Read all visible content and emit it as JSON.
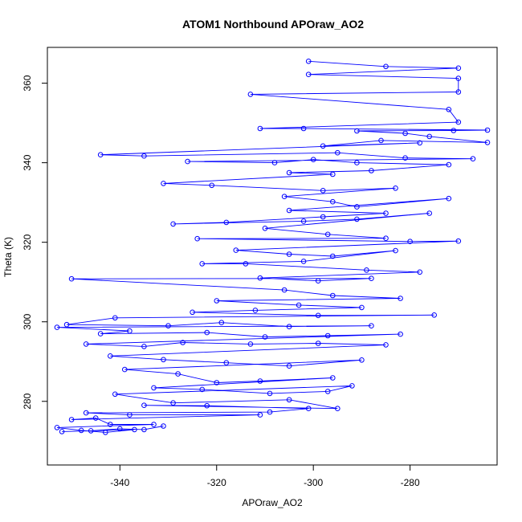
{
  "chart_data": {
    "type": "scatter",
    "title": "ATOM1 Northbound APOraw_AO2",
    "xlabel": "APOraw_AO2",
    "ylabel": "Theta (K)",
    "xlim": [
      -355,
      -262
    ],
    "ylim": [
      264,
      369
    ],
    "xticks": [
      -340,
      -320,
      -300,
      -280
    ],
    "yticks": [
      280,
      300,
      320,
      340,
      360
    ],
    "grid": false,
    "legend": "none",
    "connect_points": true,
    "series_color": "#0000ff",
    "series": [
      {
        "name": "",
        "points": [
          [
            -301,
            365.5
          ],
          [
            -285,
            364.2
          ],
          [
            -270,
            363.8
          ],
          [
            -301,
            362.2
          ],
          [
            -270,
            361.2
          ],
          [
            -270,
            357.8
          ],
          [
            -313,
            357.2
          ],
          [
            -272,
            353.4
          ],
          [
            -270,
            350.2
          ],
          [
            -311,
            348.6
          ],
          [
            -302,
            348.6
          ],
          [
            -264,
            348.2
          ],
          [
            -271,
            348.1
          ],
          [
            -291,
            348.0
          ],
          [
            -281,
            347.4
          ],
          [
            -276,
            346.6
          ],
          [
            -264,
            345.1
          ],
          [
            -286,
            345.6
          ],
          [
            -298,
            344.2
          ],
          [
            -278,
            345.0
          ],
          [
            -344,
            342.0
          ],
          [
            -335,
            341.7
          ],
          [
            -295,
            342.5
          ],
          [
            -281,
            341.2
          ],
          [
            -267,
            341.0
          ],
          [
            -326,
            340.3
          ],
          [
            -308,
            340.0
          ],
          [
            -300,
            340.8
          ],
          [
            -291,
            340.0
          ],
          [
            -272,
            339.5
          ],
          [
            -288,
            338.0
          ],
          [
            -305,
            337.5
          ],
          [
            -296,
            337.1
          ],
          [
            -331,
            334.8
          ],
          [
            -321,
            334.3
          ],
          [
            -298,
            333.0
          ],
          [
            -283,
            333.6
          ],
          [
            -306,
            331.5
          ],
          [
            -296,
            330.2
          ],
          [
            -291,
            328.9
          ],
          [
            -272,
            331.0
          ],
          [
            -305,
            328.0
          ],
          [
            -285,
            327.3
          ],
          [
            -298,
            326.4
          ],
          [
            -318,
            325.0
          ],
          [
            -329,
            324.6
          ],
          [
            -302,
            325.3
          ],
          [
            -291,
            325.8
          ],
          [
            -276,
            327.3
          ],
          [
            -310,
            323.5
          ],
          [
            -297,
            322.0
          ],
          [
            -285,
            321.0
          ],
          [
            -324,
            320.9
          ],
          [
            -280,
            320.2
          ],
          [
            -270,
            320.3
          ],
          [
            -316,
            318.0
          ],
          [
            -305,
            317.0
          ],
          [
            -296,
            316.5
          ],
          [
            -283,
            317.9
          ],
          [
            -302,
            315.2
          ],
          [
            -323,
            314.6
          ],
          [
            -314,
            314.6
          ],
          [
            -289,
            313.0
          ],
          [
            -278,
            312.5
          ],
          [
            -311,
            311.0
          ],
          [
            -299,
            310.3
          ],
          [
            -288,
            310.9
          ],
          [
            -350,
            310.8
          ],
          [
            -306,
            308.0
          ],
          [
            -296,
            306.6
          ],
          [
            -282,
            305.9
          ],
          [
            -320,
            305.3
          ],
          [
            -303,
            304.2
          ],
          [
            -290,
            303.6
          ],
          [
            -312,
            302.9
          ],
          [
            -325,
            302.4
          ],
          [
            -299,
            301.6
          ],
          [
            -275,
            301.7
          ],
          [
            -341,
            301.0
          ],
          [
            -351,
            299.3
          ],
          [
            -330,
            299.0
          ],
          [
            -319,
            299.8
          ],
          [
            -305,
            298.8
          ],
          [
            -288,
            299.0
          ],
          [
            -353,
            298.6
          ],
          [
            -338,
            297.7
          ],
          [
            -344,
            297.0
          ],
          [
            -322,
            297.3
          ],
          [
            -310,
            296.2
          ],
          [
            -297,
            296.5
          ],
          [
            -282,
            296.9
          ],
          [
            -347,
            294.4
          ],
          [
            -335,
            293.8
          ],
          [
            -327,
            294.8
          ],
          [
            -313,
            294.4
          ],
          [
            -299,
            294.6
          ],
          [
            -285,
            294.2
          ],
          [
            -342,
            291.4
          ],
          [
            -331,
            290.5
          ],
          [
            -318,
            289.7
          ],
          [
            -305,
            288.9
          ],
          [
            -290,
            290.4
          ],
          [
            -339,
            288.0
          ],
          [
            -328,
            286.9
          ],
          [
            -320,
            284.7
          ],
          [
            -311,
            285.1
          ],
          [
            -296,
            285.9
          ],
          [
            -333,
            283.4
          ],
          [
            -323,
            283.0
          ],
          [
            -309,
            282.0
          ],
          [
            -297,
            282.5
          ],
          [
            -292,
            283.9
          ],
          [
            -341,
            281.8
          ],
          [
            -329,
            279.6
          ],
          [
            -305,
            280.4
          ],
          [
            -295,
            278.2
          ],
          [
            -335,
            279.0
          ],
          [
            -322,
            278.9
          ],
          [
            -301,
            278.2
          ],
          [
            -309,
            277.3
          ],
          [
            -347,
            277.1
          ],
          [
            -338,
            276.6
          ],
          [
            -311,
            276.6
          ],
          [
            -350,
            275.4
          ],
          [
            -345,
            275.8
          ],
          [
            -342,
            274.2
          ],
          [
            -333,
            274.2
          ],
          [
            -353,
            273.4
          ],
          [
            -348,
            272.7
          ],
          [
            -343,
            272.2
          ],
          [
            -337,
            272.9
          ],
          [
            -352,
            272.4
          ],
          [
            -346,
            272.6
          ],
          [
            -340,
            273.1
          ],
          [
            -335,
            272.9
          ],
          [
            -331,
            273.8
          ]
        ]
      }
    ]
  }
}
